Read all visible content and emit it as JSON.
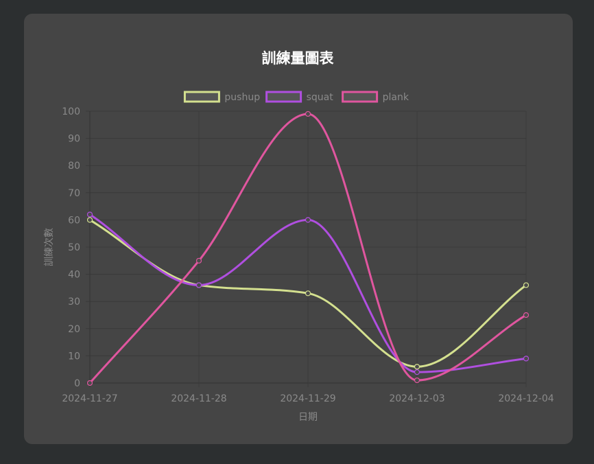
{
  "chart_data": {
    "type": "line",
    "title": "訓練量圖表",
    "xlabel": "日期",
    "ylabel": "訓練次數",
    "categories": [
      "2024-11-27",
      "2024-11-28",
      "2024-11-29",
      "2024-12-03",
      "2024-12-04"
    ],
    "ylim": [
      0,
      100
    ],
    "yticks": [
      0,
      10,
      20,
      30,
      40,
      50,
      60,
      70,
      80,
      90,
      100
    ],
    "grid": true,
    "legend_position": "top",
    "series": [
      {
        "name": "pushup",
        "color": "#d4e08f",
        "values": [
          60,
          36,
          33,
          6,
          36
        ]
      },
      {
        "name": "squat",
        "color": "#b04fe0",
        "values": [
          62,
          36,
          60,
          4,
          9
        ]
      },
      {
        "name": "plank",
        "color": "#e0569f",
        "values": [
          0,
          45,
          99,
          1,
          25
        ]
      }
    ]
  }
}
